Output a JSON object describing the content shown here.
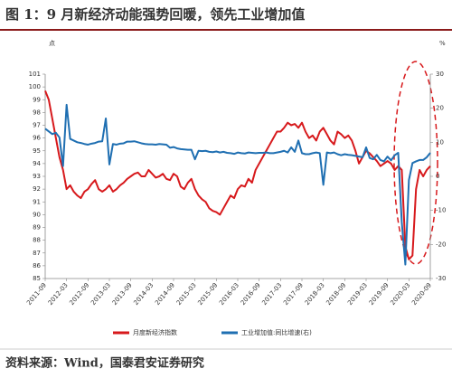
{
  "chart_data": {
    "type": "line",
    "title": "图 1：9 月新经济动能强势回暖，领先工业增加值",
    "y_label": "点",
    "y2_label": "%",
    "source": "资料来源：Wind，国泰君安证券研究",
    "categories": [
      "2011-09",
      null,
      null,
      null,
      null,
      null,
      "2012-03",
      null,
      null,
      null,
      null,
      null,
      "2012-09",
      null,
      null,
      null,
      null,
      null,
      "2013-03",
      null,
      null,
      null,
      null,
      null,
      "2013-09",
      null,
      null,
      null,
      null,
      null,
      "2014-03",
      null,
      null,
      null,
      null,
      null,
      "2014-09",
      null,
      null,
      null,
      null,
      null,
      "2015-03",
      null,
      null,
      null,
      null,
      null,
      "2015-09",
      null,
      null,
      null,
      null,
      null,
      "2016-03",
      null,
      null,
      null,
      null,
      null,
      "2016-09",
      null,
      null,
      null,
      null,
      null,
      "2017-03",
      null,
      null,
      null,
      null,
      null,
      "2017-09",
      null,
      null,
      null,
      null,
      null,
      "2018-03",
      null,
      null,
      null,
      null,
      null,
      "2018-09",
      null,
      null,
      null,
      null,
      null,
      "2019-03",
      null,
      null,
      null,
      null,
      null,
      "2019-09",
      null,
      null,
      null,
      null,
      null,
      "2020-03",
      null,
      null,
      null,
      null,
      null,
      "2020-09"
    ],
    "series": [
      {
        "name": "月度新经济指数",
        "color": "#d7191c",
        "values": [
          99.7,
          99,
          97.5,
          96,
          94.5,
          93.5,
          92,
          92.3,
          91.8,
          91.5,
          91.3,
          91.8,
          92,
          92.4,
          92.7,
          92,
          91.8,
          92,
          92.3,
          91.8,
          92,
          92.3,
          92.5,
          92.8,
          93,
          93.2,
          93.3,
          93,
          93,
          93.5,
          93.2,
          92.9,
          93,
          93.2,
          92.8,
          92.7,
          93.2,
          93,
          92.2,
          92,
          92.5,
          92.8,
          92,
          91.5,
          91.2,
          91,
          90.5,
          90.3,
          90.2,
          90,
          90.5,
          91,
          91.5,
          91.3,
          92,
          92.3,
          92.2,
          92.8,
          92.5,
          93.5,
          94,
          94.5,
          95,
          95.5,
          96,
          96.5,
          96.5,
          96.8,
          97.2,
          97,
          97.1,
          96.8,
          97.2,
          96.5,
          96,
          96.2,
          95.8,
          96.5,
          96.8,
          96.3,
          95.8,
          95.5,
          96.5,
          96.3,
          96,
          96.2,
          95.8,
          95,
          94,
          94.5,
          95,
          94.8,
          94.5,
          94.2,
          93.8,
          94,
          94.2,
          94,
          93.5,
          93.8,
          93.5,
          87.5,
          86.5,
          86.8,
          92,
          93.5,
          93,
          93.5,
          93.8
        ]
      },
      {
        "name": "工业增加值:同比增速(右)",
        "color": "#1f6fb2",
        "axis": "y2",
        "values": [
          14,
          13.2,
          12.4,
          12.8,
          11.4,
          3,
          21,
          11,
          10.5,
          10,
          9.8,
          9.5,
          9.3,
          9.6,
          9.8,
          10.2,
          10.3,
          17,
          3.5,
          9.5,
          9.3,
          9.6,
          9.7,
          10.2,
          10.2,
          10.3,
          10,
          9.7,
          9.5,
          9.4,
          9.4,
          9.3,
          9.5,
          9.4,
          9.3,
          8.4,
          8.6,
          8.2,
          8,
          7.9,
          7.8,
          7.8,
          5,
          7.5,
          7.4,
          7.5,
          7.2,
          7.1,
          7.3,
          7,
          7.2,
          6.9,
          6.8,
          6.6,
          7,
          6.8,
          6.7,
          7,
          6.9,
          6.8,
          6.9,
          6.9,
          7,
          6.8,
          6.8,
          7,
          7.2,
          7.5,
          7,
          8.5,
          7.2,
          10.5,
          6.8,
          6.5,
          6.5,
          6.8,
          7,
          6.8,
          -2.5,
          7,
          6.8,
          7,
          6.5,
          6.2,
          6.5,
          6.3,
          6.2,
          6,
          5.8,
          5.6,
          8.5,
          5.4,
          5,
          6.3,
          4.8,
          4.4,
          5.8,
          4.7,
          6.2,
          6.9,
          -13.5,
          -25.9,
          -1.1,
          3.9,
          4.4,
          4.8,
          4.8,
          5.6,
          6.9
        ]
      }
    ],
    "ylim": [
      85,
      101
    ],
    "yticks": [
      85,
      86,
      87,
      88,
      89,
      90,
      91,
      92,
      93,
      94,
      95,
      96,
      97,
      98,
      99,
      100,
      101
    ],
    "y2lim": [
      -30,
      30
    ],
    "y2ticks": [
      -30,
      -20,
      -10,
      0,
      10,
      20,
      30
    ]
  }
}
